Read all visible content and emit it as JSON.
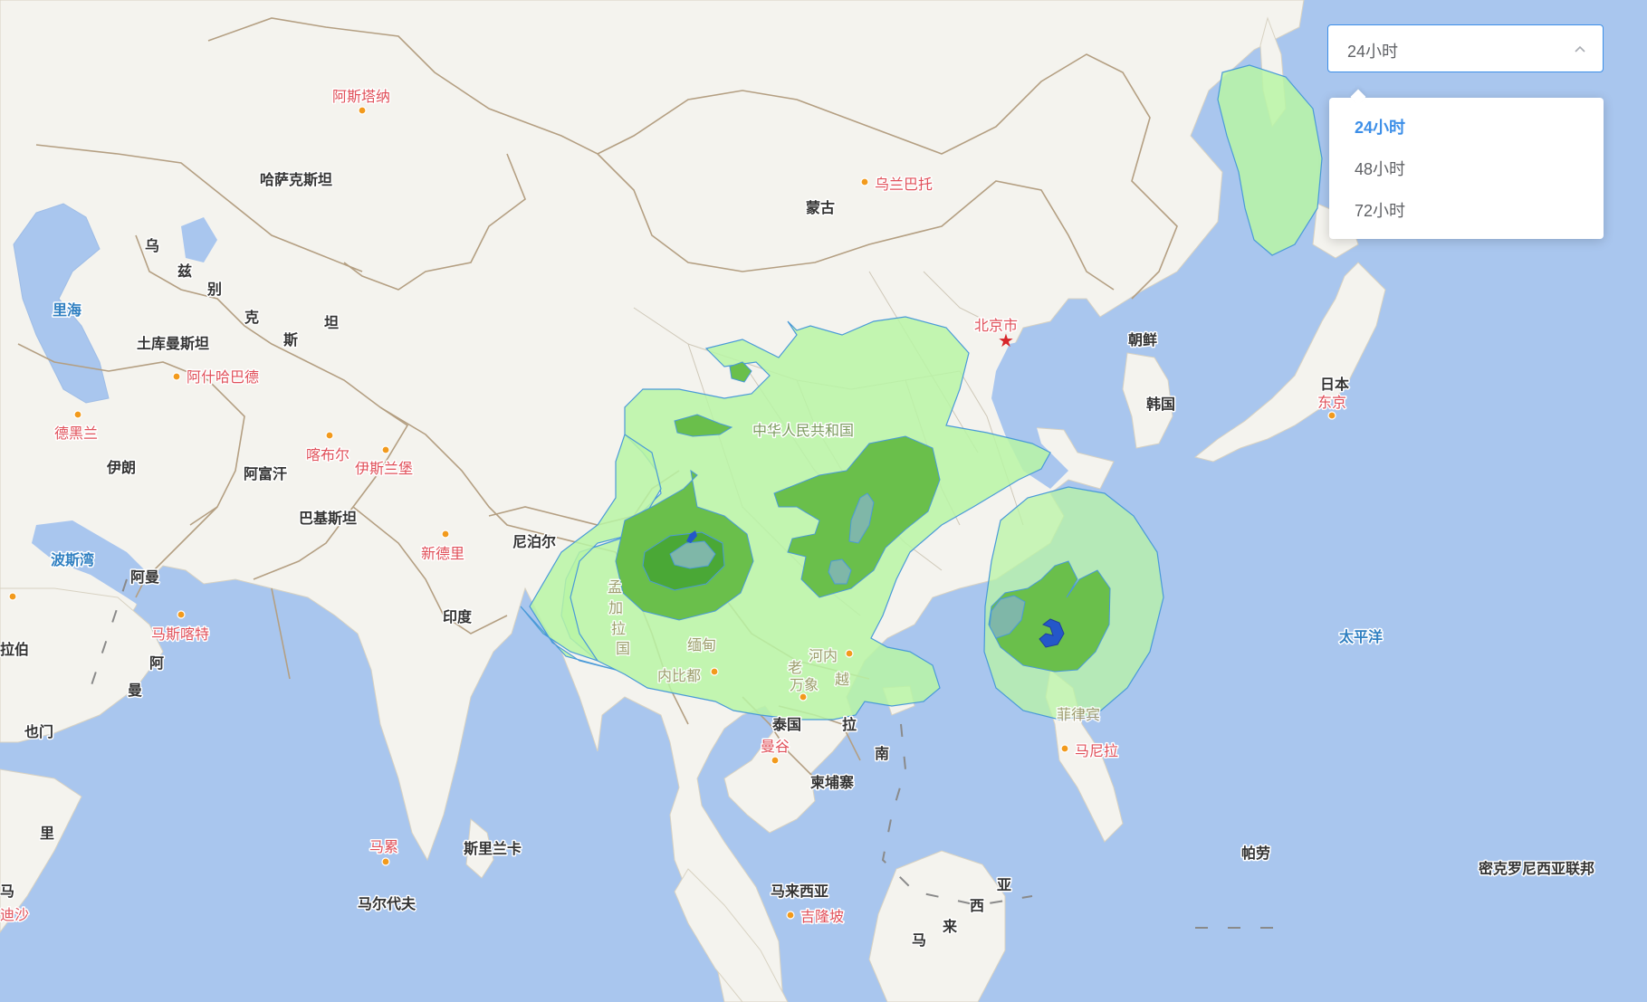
{
  "period_select": {
    "value": "24小时",
    "options": [
      {
        "label": "24小时",
        "selected": true
      },
      {
        "label": "48小时",
        "selected": false
      },
      {
        "label": "72小时",
        "selected": false
      }
    ],
    "accent_color": "#3d8fe8"
  },
  "map": {
    "colors": {
      "sea": "#a9c6ee",
      "land": "#f4f3ee",
      "border": "#b49f82",
      "rain_light": "#b9f4a4",
      "rain_moderate": "#6abf4b",
      "rain_heavy": "#4aa836",
      "rain_heavier": "#7fb7a8",
      "rain_storm": "#2457c9"
    },
    "labels": {
      "astana": "阿斯塔纳",
      "kazakhstan": "哈萨克斯坦",
      "ulaanbaatar": "乌兰巴托",
      "mongolia": "蒙古",
      "uz1": "乌",
      "uz2": "兹",
      "uz3": "别",
      "uz4": "克",
      "uz5": "斯",
      "uz6": "坦",
      "caspian": "里海",
      "turkmenistan": "土库曼斯坦",
      "ashgabat": "阿什哈巴德",
      "tehran": "德黑兰",
      "iran": "伊朗",
      "kabul": "喀布尔",
      "islamabad": "伊斯兰堡",
      "afghanistan": "阿富汗",
      "pakistan": "巴基斯坦",
      "beijing": "北京市",
      "china": "中华人民共和国",
      "nkorea": "朝鲜",
      "skorea": "韩国",
      "japan": "日本",
      "tokyo": "东京",
      "persian_gulf": "波斯湾",
      "oman": "阿曼",
      "muscat": "马斯喀特",
      "arabia": "拉伯",
      "oman2": "阿",
      "oman3": "曼",
      "yemen": "也门",
      "new_delhi": "新德里",
      "nepal": "尼泊尔",
      "india": "印度",
      "bd1": "孟",
      "bd2": "加",
      "bd3": "拉",
      "bd4": "国",
      "myanmar": "缅甸",
      "naypyidaw": "内比都",
      "laos": "老",
      "hanoi": "河内",
      "vientiane": "万象",
      "vn1": "越",
      "thailand": "泰国",
      "bangkok": "曼谷",
      "vn2": "南",
      "vn3": "拉",
      "cambodia": "柬埔寨",
      "pacific": "太平洋",
      "philippines": "菲律宾",
      "manila": "马尼拉",
      "palau": "帕劳",
      "micronesia": "密克罗尼西亚联邦",
      "somalia": "里",
      "male": "马累",
      "maldives": "马尔代夫",
      "sri_lanka": "斯里兰卡",
      "malaysia": "马来西亚",
      "kl": "吉隆坡",
      "my1": "亚",
      "my2": "西",
      "my3": "来",
      "my4": "马",
      "edge1": "马",
      "edge2": "迪沙"
    }
  }
}
